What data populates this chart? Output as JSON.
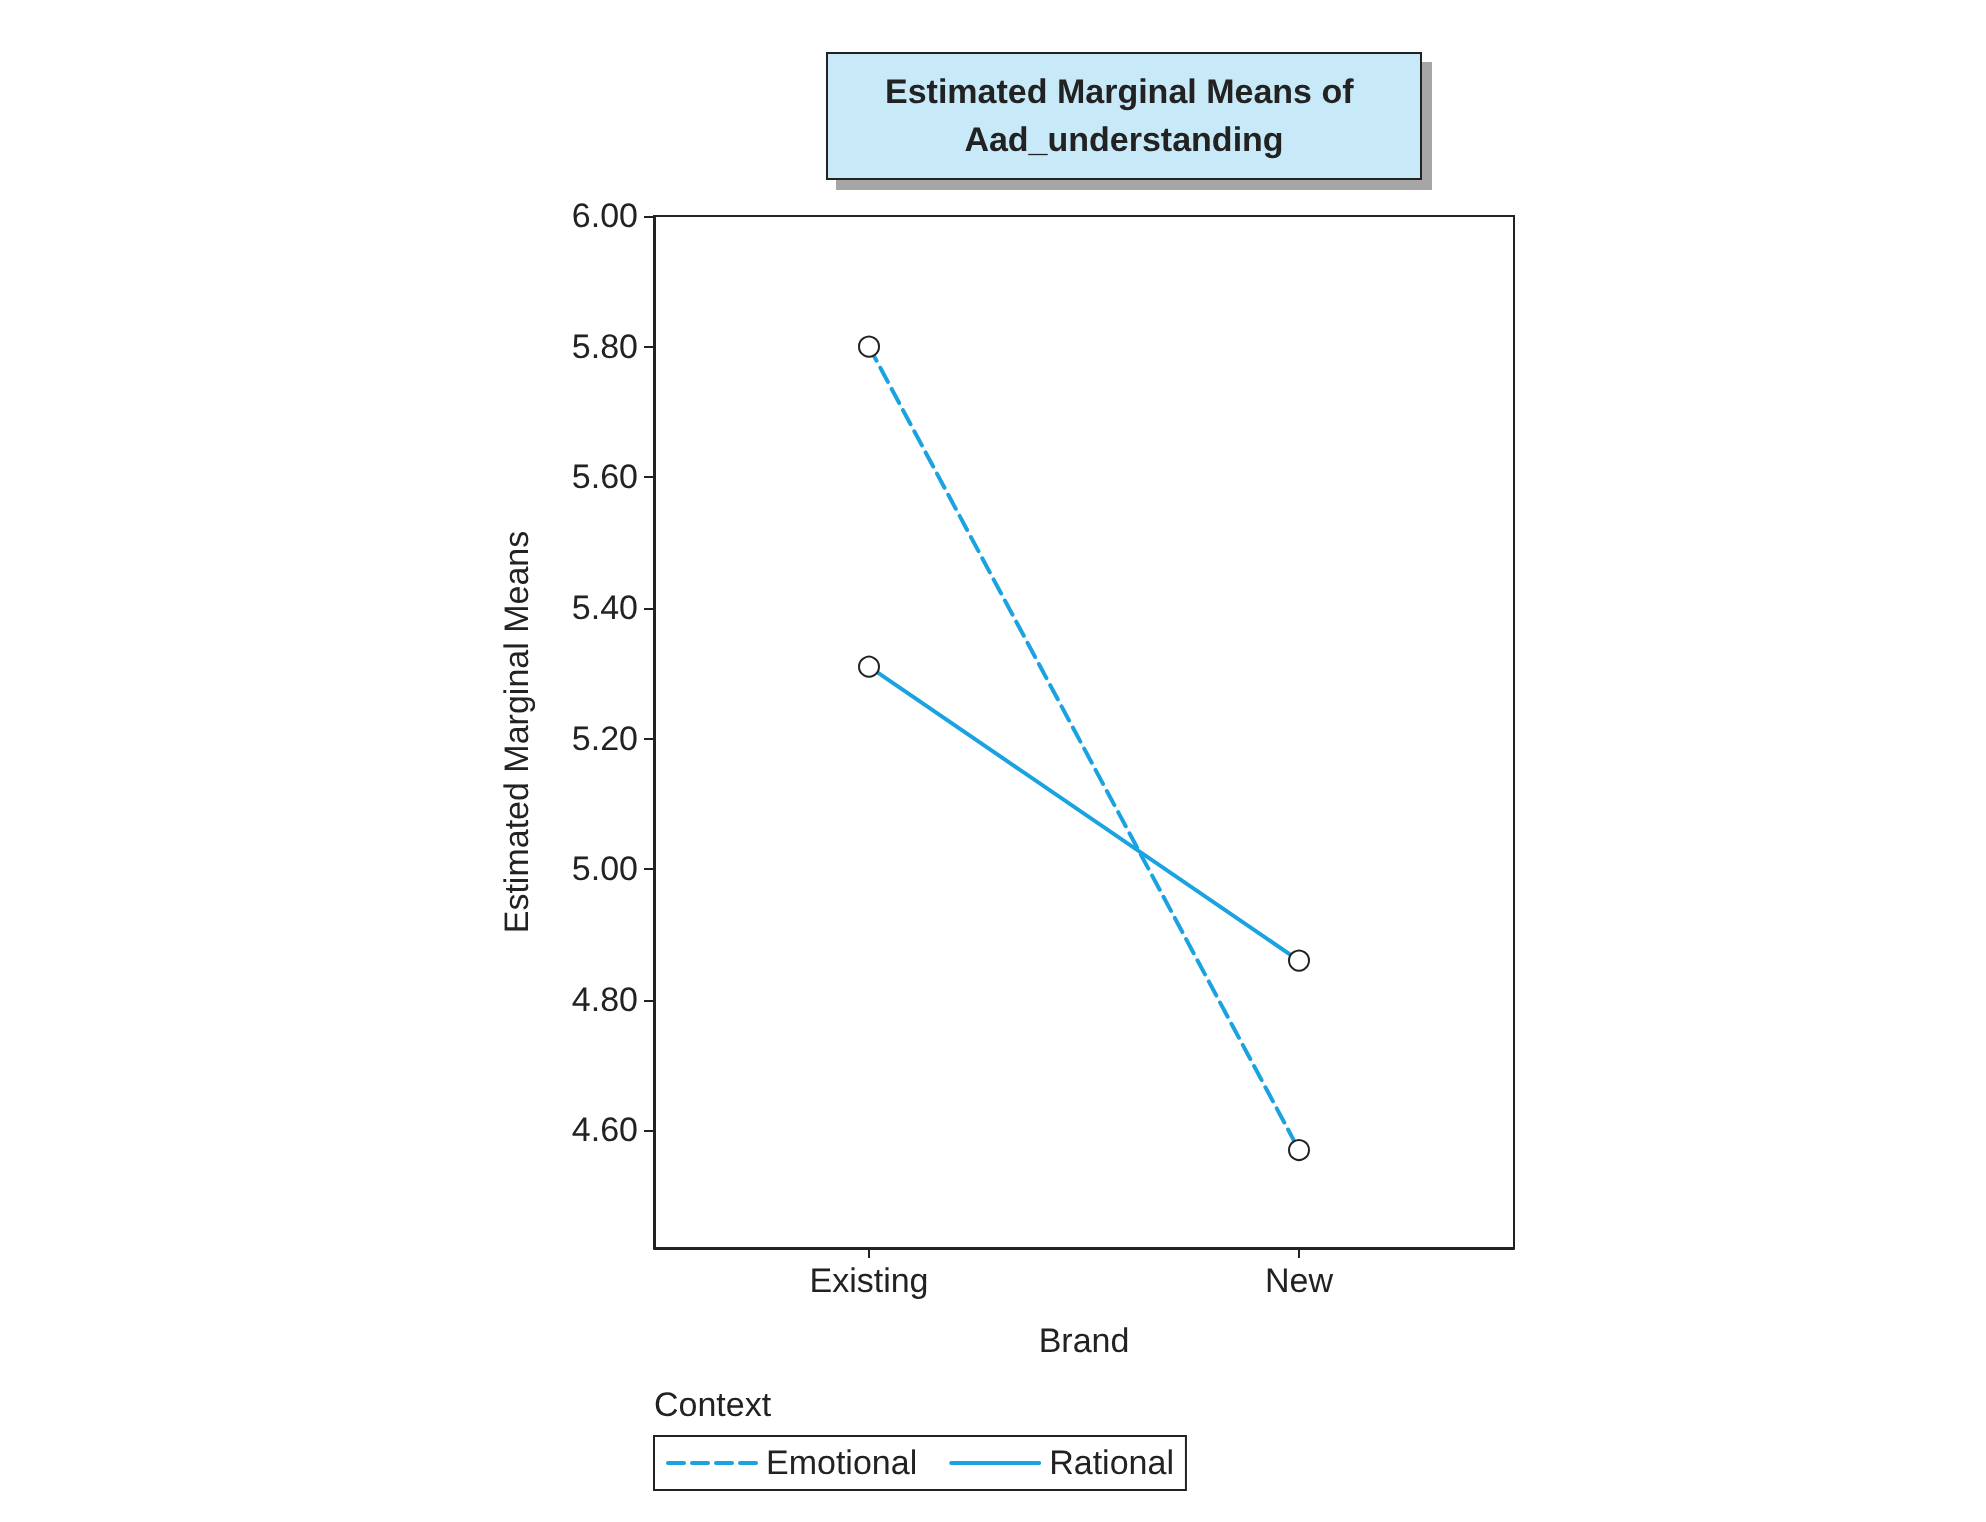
{
  "chart_data": {
    "type": "line",
    "title": "Estimated Marginal Means of Aad_understanding",
    "xlabel": "Brand",
    "ylabel": "Estimated Marginal Means",
    "legend_title": "Context",
    "categories": [
      "Existing",
      "New"
    ],
    "series": [
      {
        "name": "Emotional",
        "color": "#1aa3e0",
        "values": [
          5.8,
          4.57
        ],
        "line_style": "dashed"
      },
      {
        "name": "Rational",
        "color": "#1aa3e0",
        "values": [
          5.31,
          4.86
        ],
        "line_style": "solid"
      }
    ],
    "ylim": [
      4.42,
      6.0
    ],
    "yticks": [
      {
        "value": 4.6,
        "label": "4.60"
      },
      {
        "value": 4.8,
        "label": "4.80"
      },
      {
        "value": 5.0,
        "label": "5.00"
      },
      {
        "value": 5.2,
        "label": "5.20"
      },
      {
        "value": 5.4,
        "label": "5.40"
      },
      {
        "value": 5.6,
        "label": "5.60"
      },
      {
        "value": 5.8,
        "label": "5.80"
      },
      {
        "value": 6.0,
        "label": "6.00"
      }
    ],
    "marker": "circle",
    "grid": false,
    "legend": "bottom left"
  }
}
